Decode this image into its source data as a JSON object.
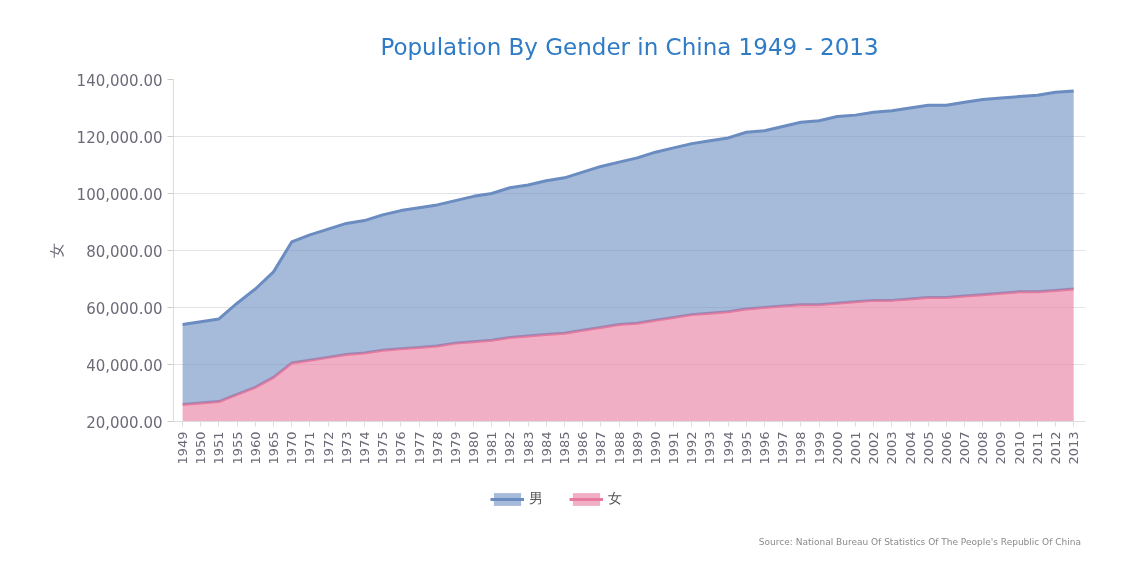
{
  "chart_data": {
    "type": "area",
    "title": "Population By Gender in China 1949 - 2013",
    "ylabel": "女",
    "categories": [
      "1949",
      "1950",
      "1951",
      "1955",
      "1960",
      "1965",
      "1970",
      "1971",
      "1972",
      "1973",
      "1974",
      "1975",
      "1976",
      "1977",
      "1978",
      "1979",
      "1980",
      "1981",
      "1982",
      "1983",
      "1984",
      "1985",
      "1986",
      "1987",
      "1988",
      "1989",
      "1990",
      "1991",
      "1992",
      "1993",
      "1994",
      "1995",
      "1996",
      "1997",
      "1998",
      "1999",
      "2000",
      "2001",
      "2002",
      "2003",
      "2004",
      "2005",
      "2006",
      "2007",
      "2008",
      "2009",
      "2010",
      "2011",
      "2012",
      "2013"
    ],
    "series": [
      {
        "name": "女",
        "color": "#e87a9e",
        "values": [
          26000,
          26500,
          27000,
          29500,
          32000,
          35500,
          40500,
          41500,
          42500,
          43500,
          44000,
          45000,
          45500,
          46000,
          46500,
          47500,
          48000,
          48500,
          49500,
          50000,
          50500,
          51000,
          52000,
          53000,
          54000,
          54500,
          55500,
          56500,
          57500,
          58000,
          58500,
          59500,
          60000,
          60500,
          61000,
          61000,
          61500,
          62000,
          62500,
          62500,
          63000,
          63500,
          63500,
          64000,
          64500,
          65000,
          65500,
          65500,
          66000,
          66500
        ]
      },
      {
        "name": "男",
        "color": "#6a8cc0",
        "values": [
          28000,
          28500,
          29000,
          32000,
          34500,
          37000,
          42500,
          44000,
          45000,
          46000,
          46500,
          47500,
          48500,
          49000,
          49500,
          50000,
          51000,
          51500,
          52500,
          53000,
          54000,
          54500,
          55500,
          56500,
          57000,
          58000,
          59000,
          59500,
          60000,
          60500,
          61000,
          62000,
          62000,
          63000,
          64000,
          64500,
          65500,
          65500,
          66000,
          66500,
          67000,
          67500,
          67500,
          68000,
          68500,
          68500,
          68500,
          69000,
          69500,
          69500
        ]
      }
    ],
    "stacked": true,
    "ylim": [
      20000,
      140000
    ],
    "yticks": [
      {
        "value": 20000,
        "label": "20,000.00"
      },
      {
        "value": 40000,
        "label": "40,000.00"
      },
      {
        "value": 60000,
        "label": "60,000.00"
      },
      {
        "value": 80000,
        "label": "80,000.00"
      },
      {
        "value": 100000,
        "label": "100,000.00"
      },
      {
        "value": 120000,
        "label": "120,000.00"
      },
      {
        "value": 140000,
        "label": "140,000.00"
      }
    ],
    "grid": "y",
    "legend": "bottom",
    "annotations": [
      "Source: National Bureau Of Statistics Of The People's Republic Of China"
    ]
  }
}
